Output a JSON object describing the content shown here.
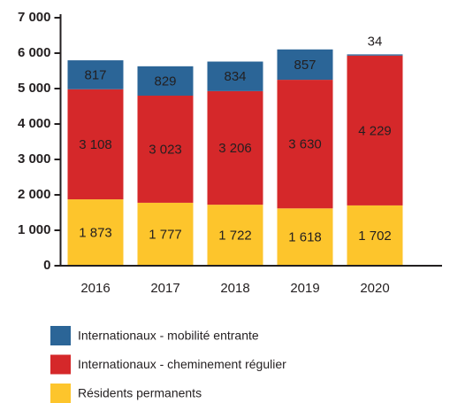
{
  "chart_data": {
    "type": "stacked_bar",
    "categories": [
      "2016",
      "2017",
      "2018",
      "2019",
      "2020"
    ],
    "series": [
      {
        "name": "Internationaux - mobilité entrante",
        "color": "#2b6597",
        "values": [
          817,
          829,
          834,
          857,
          34
        ],
        "value_labels": [
          "817",
          "829",
          "834",
          "857",
          "34"
        ]
      },
      {
        "name": "Internationaux - cheminement régulier",
        "color": "#d5282a",
        "values": [
          3108,
          3023,
          3206,
          3630,
          4229
        ],
        "value_labels": [
          "3 108",
          "3 023",
          "3 206",
          "3 630",
          "4 229"
        ]
      },
      {
        "name": "Résidents permanents",
        "color": "#fdc52c",
        "values": [
          1873,
          1777,
          1722,
          1618,
          1702
        ],
        "value_labels": [
          "1 873",
          "1 777",
          "1 722",
          "1 618",
          "1 702"
        ]
      }
    ],
    "ylim": [
      0,
      7000
    ],
    "yticks": [
      0,
      {
        "value": 1000,
        "label": "1 000"
      },
      {
        "value": 2000,
        "label": "2 000"
      },
      {
        "value": 3000,
        "label": "3 000"
      },
      {
        "value": 4000,
        "label": "4 000"
      },
      {
        "value": 5000,
        "label": "5 000"
      },
      {
        "value": 6000,
        "label": "6 000"
      },
      {
        "value": 7000,
        "label": "7 000"
      }
    ]
  }
}
